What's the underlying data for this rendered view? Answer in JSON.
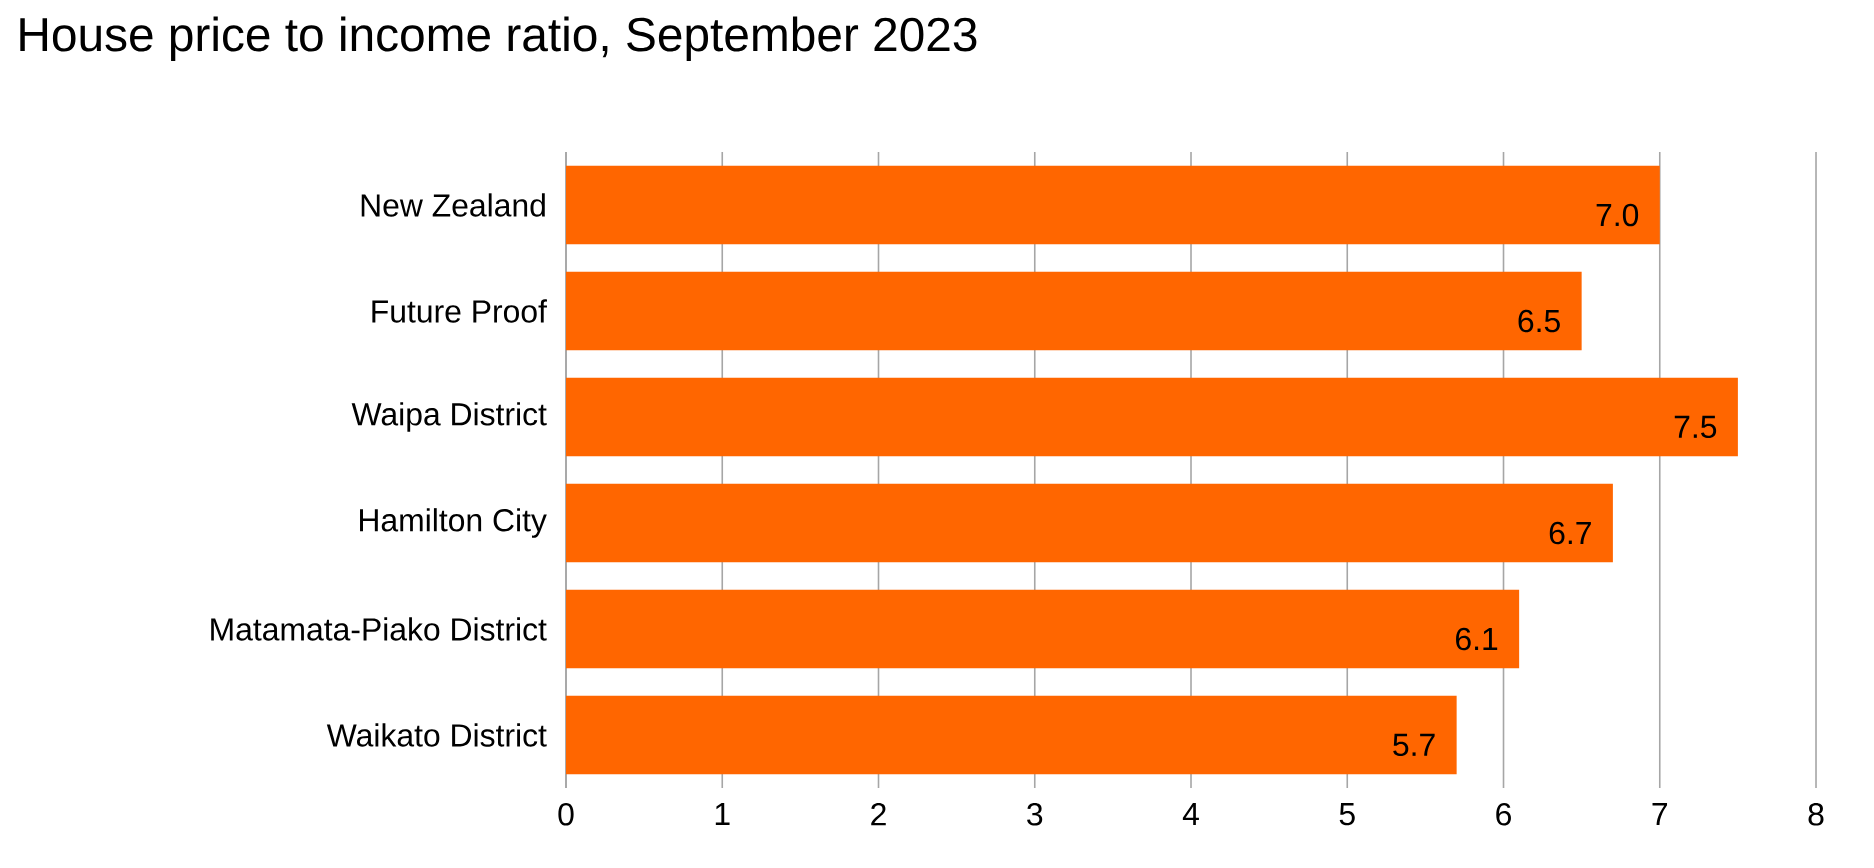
{
  "chart_data": {
    "type": "bar",
    "orientation": "horizontal",
    "title": "House price to income ratio, September 2023",
    "categories": [
      "New Zealand",
      "Future Proof",
      "Waipa District",
      "Hamilton City",
      "Matamata-Piako District",
      "Waikato District"
    ],
    "values": [
      7.0,
      6.5,
      7.5,
      6.7,
      6.1,
      5.7
    ],
    "value_labels": [
      "7.0",
      "6.5",
      "7.5",
      "6.7",
      "6.1",
      "5.7"
    ],
    "color": "#ff6600",
    "xlim": [
      0,
      8
    ],
    "xticks": [
      0,
      1,
      2,
      3,
      4,
      5,
      6,
      7,
      8
    ],
    "grid": "x"
  }
}
